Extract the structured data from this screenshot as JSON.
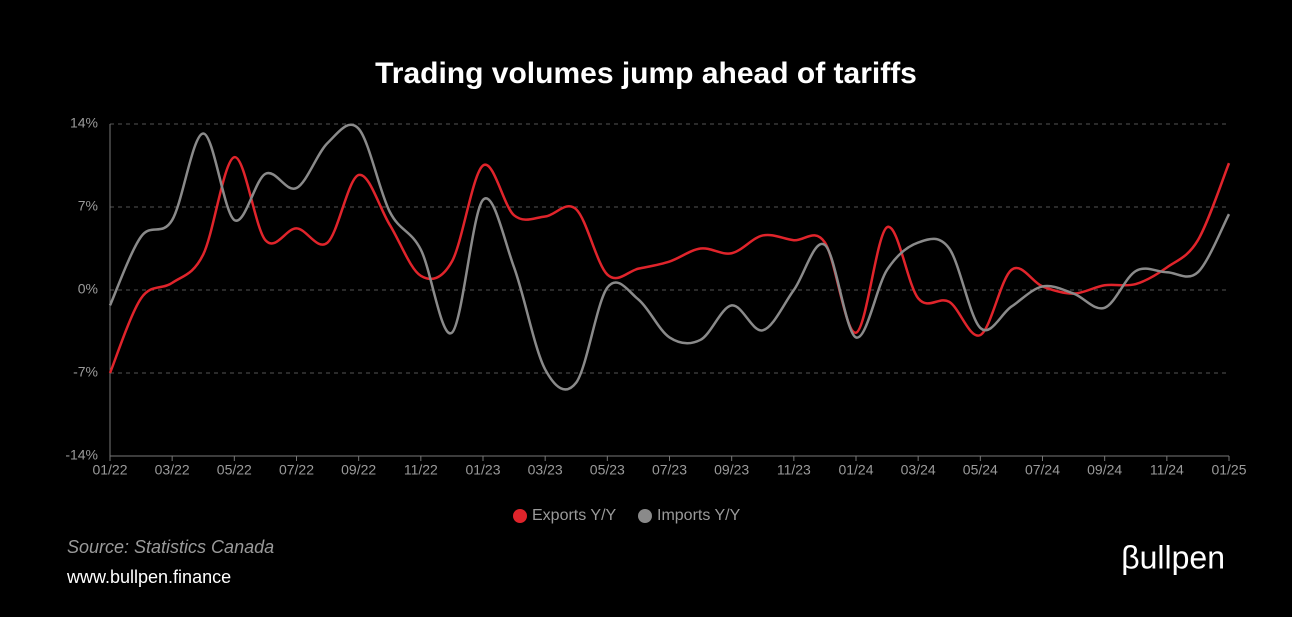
{
  "chart_data": {
    "type": "line",
    "title": "Trading volumes jump ahead of tariffs",
    "categories": [
      "01/22",
      null,
      "03/22",
      null,
      "05/22",
      null,
      "07/22",
      null,
      "09/22",
      null,
      "11/22",
      null,
      "01/23",
      null,
      "03/23",
      null,
      "05/23",
      null,
      "07/23",
      null,
      "09/23",
      null,
      "11/23",
      null,
      "01/24",
      null,
      "03/24",
      null,
      "05/24",
      null,
      "07/24",
      null,
      "09/24",
      null,
      "11/24",
      null,
      "01/25"
    ],
    "series": [
      {
        "name": "Exports Y/Y",
        "color": "#e0242b",
        "values": [
          -7.0,
          -0.7,
          0.6,
          3.0,
          11.2,
          4.2,
          5.2,
          4.0,
          9.7,
          5.5,
          1.2,
          2.4,
          10.5,
          6.3,
          6.2,
          6.8,
          1.3,
          1.8,
          2.4,
          3.5,
          3.1,
          4.6,
          4.2,
          4.0,
          -3.6,
          5.3,
          -0.7,
          -1.0,
          -3.8,
          1.7,
          0.3,
          -0.3,
          0.4,
          0.5,
          1.9,
          4.2,
          10.7
        ]
      },
      {
        "name": "Imports Y/Y",
        "color": "#8a8a8a",
        "values": [
          -1.3,
          4.5,
          5.9,
          13.2,
          5.9,
          9.8,
          8.6,
          12.4,
          13.6,
          6.6,
          3.4,
          -3.6,
          7.6,
          1.9,
          -6.7,
          -7.8,
          0.2,
          -0.8,
          -4.0,
          -4.2,
          -1.3,
          -3.4,
          0.0,
          3.8,
          -4.0,
          1.7,
          4.0,
          3.5,
          -3.2,
          -1.4,
          0.3,
          -0.3,
          -1.5,
          1.6,
          1.5,
          1.5,
          6.4
        ]
      }
    ],
    "ylim": [
      -14,
      14
    ],
    "yticks": [
      {
        "value": -14,
        "label": "-14%"
      },
      {
        "value": -7,
        "label": "-7%"
      },
      {
        "value": 0,
        "label": "0%"
      },
      {
        "value": 7,
        "label": "7%"
      },
      {
        "value": 14,
        "label": "14%"
      }
    ],
    "grid": true,
    "legend": "bottom"
  },
  "footer": {
    "source": "Source: Statistics Canada",
    "website": "www.bullpen.finance",
    "brand": "βullpen"
  }
}
